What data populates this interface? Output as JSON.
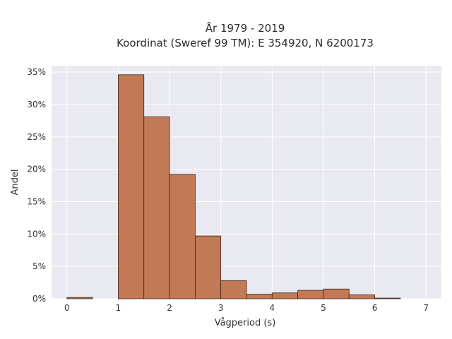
{
  "chart_data": {
    "type": "bar",
    "title_lines": [
      "År 1979 - 2019",
      "Koordinat (Sweref 99 TM): E 354920, N 6200173"
    ],
    "xlabel": "Vågperiod (s)",
    "ylabel": "Andel",
    "xlim": [
      -0.3,
      7.3
    ],
    "ylim": [
      0,
      36
    ],
    "xticks": [
      0,
      1,
      2,
      3,
      4,
      5,
      6,
      7
    ],
    "yticks": [
      0,
      5,
      10,
      15,
      20,
      25,
      30,
      35
    ],
    "ytick_labels": [
      "0%",
      "5%",
      "10%",
      "15%",
      "20%",
      "25%",
      "30%",
      "35%"
    ],
    "bin_width": 0.5,
    "bins_start": [
      0,
      0.5,
      1.0,
      1.5,
      2.0,
      2.5,
      3.0,
      3.5,
      4.0,
      4.5,
      5.0,
      5.5,
      6.0,
      6.5
    ],
    "values": [
      0.2,
      0,
      34.6,
      28.1,
      19.2,
      9.7,
      2.8,
      0.7,
      0.9,
      1.3,
      1.5,
      0.6,
      0.1,
      0
    ],
    "grid": true,
    "colors": {
      "bar_fill": "#c17a55",
      "bar_edge": "#3a2418",
      "plot_bg": "#e9e9f1",
      "grid": "#ffffff"
    }
  }
}
